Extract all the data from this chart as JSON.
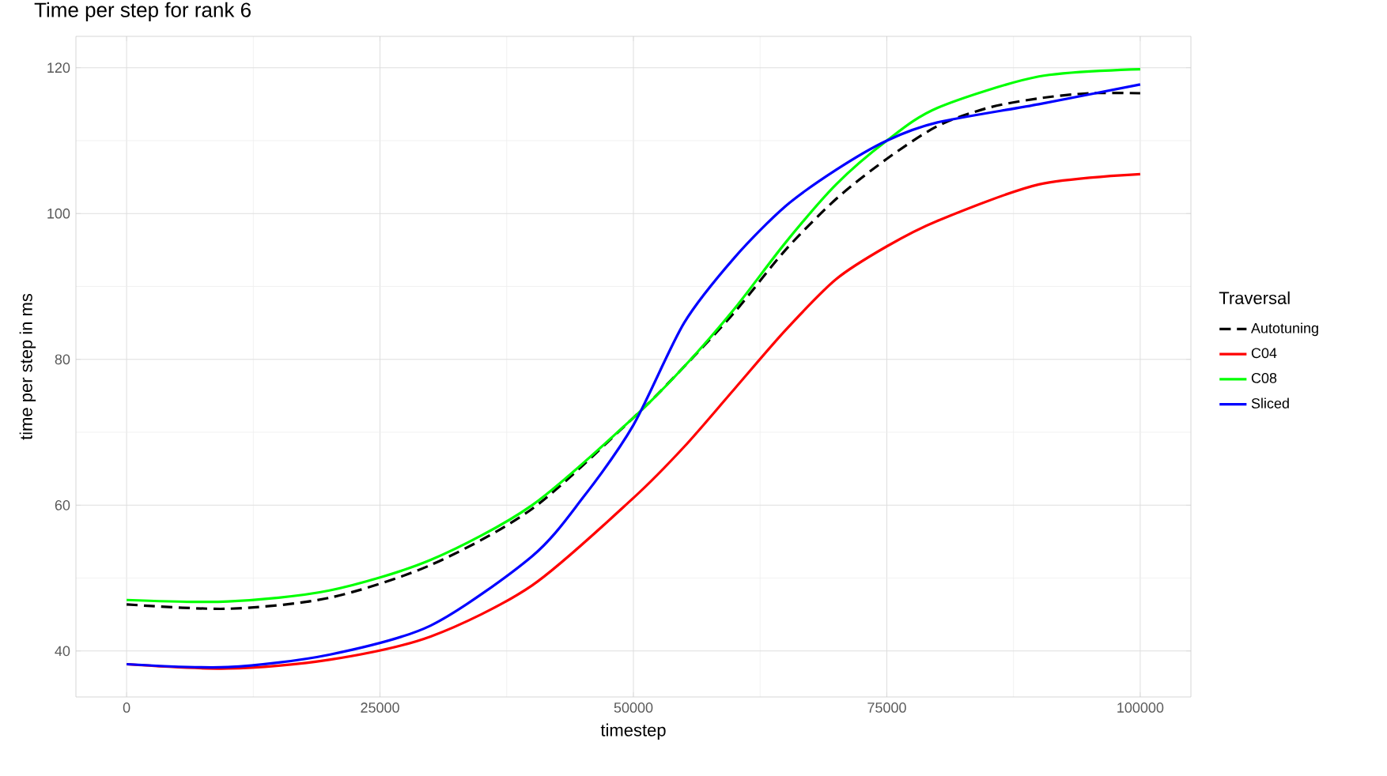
{
  "chart_data": {
    "type": "line",
    "title": "Time per step for rank 6",
    "xlabel": "timestep",
    "ylabel": "time per step in ms",
    "legend_title": "Traversal",
    "legend": "right",
    "grid": true,
    "marker": "none",
    "xlim": [
      -5000,
      105000
    ],
    "xticks": [
      0,
      25000,
      50000,
      75000,
      100000
    ],
    "ylim": [
      33.7,
      124.3
    ],
    "yticks": [
      40,
      60,
      80,
      100,
      120
    ],
    "series": [
      {
        "name": "Autotuning",
        "color": "#000000",
        "line_style": "dashed",
        "x": [
          0,
          10000,
          20000,
          30000,
          40000,
          50000,
          55000,
          60000,
          65000,
          70000,
          75000,
          80000,
          85000,
          90000,
          95000,
          100000
        ],
        "values": [
          46.4,
          45.8,
          47.3,
          51.8,
          59.5,
          72,
          79,
          86.5,
          95,
          102,
          107.5,
          112,
          114.5,
          115.8,
          116.5,
          116.5
        ]
      },
      {
        "name": "C04",
        "color": "#ff0000",
        "line_style": "solid",
        "x": [
          0,
          10000,
          20000,
          30000,
          40000,
          50000,
          55000,
          60000,
          65000,
          70000,
          75000,
          80000,
          90000,
          100000
        ],
        "values": [
          38.2,
          37.6,
          38.8,
          42,
          49,
          61,
          68,
          76,
          84,
          91,
          95.5,
          99,
          104,
          105.4
        ]
      },
      {
        "name": "C08",
        "color": "#00ff00",
        "line_style": "solid",
        "x": [
          0,
          10000,
          20000,
          30000,
          40000,
          50000,
          55000,
          60000,
          65000,
          70000,
          75000,
          80000,
          90000,
          100000
        ],
        "values": [
          47,
          46.8,
          48.3,
          52.5,
          60,
          72,
          79,
          87,
          96,
          104,
          110,
          114.5,
          118.8,
          119.8
        ]
      },
      {
        "name": "Sliced",
        "color": "#0000ff",
        "line_style": "solid",
        "x": [
          0,
          10000,
          20000,
          30000,
          40000,
          45000,
          50000,
          55000,
          60000,
          65000,
          70000,
          75000,
          80000,
          90000,
          100000
        ],
        "values": [
          38.2,
          37.8,
          39.5,
          43.5,
          53,
          61,
          71,
          85,
          94,
          101,
          106,
          110,
          112.5,
          115,
          117.7
        ]
      }
    ]
  }
}
